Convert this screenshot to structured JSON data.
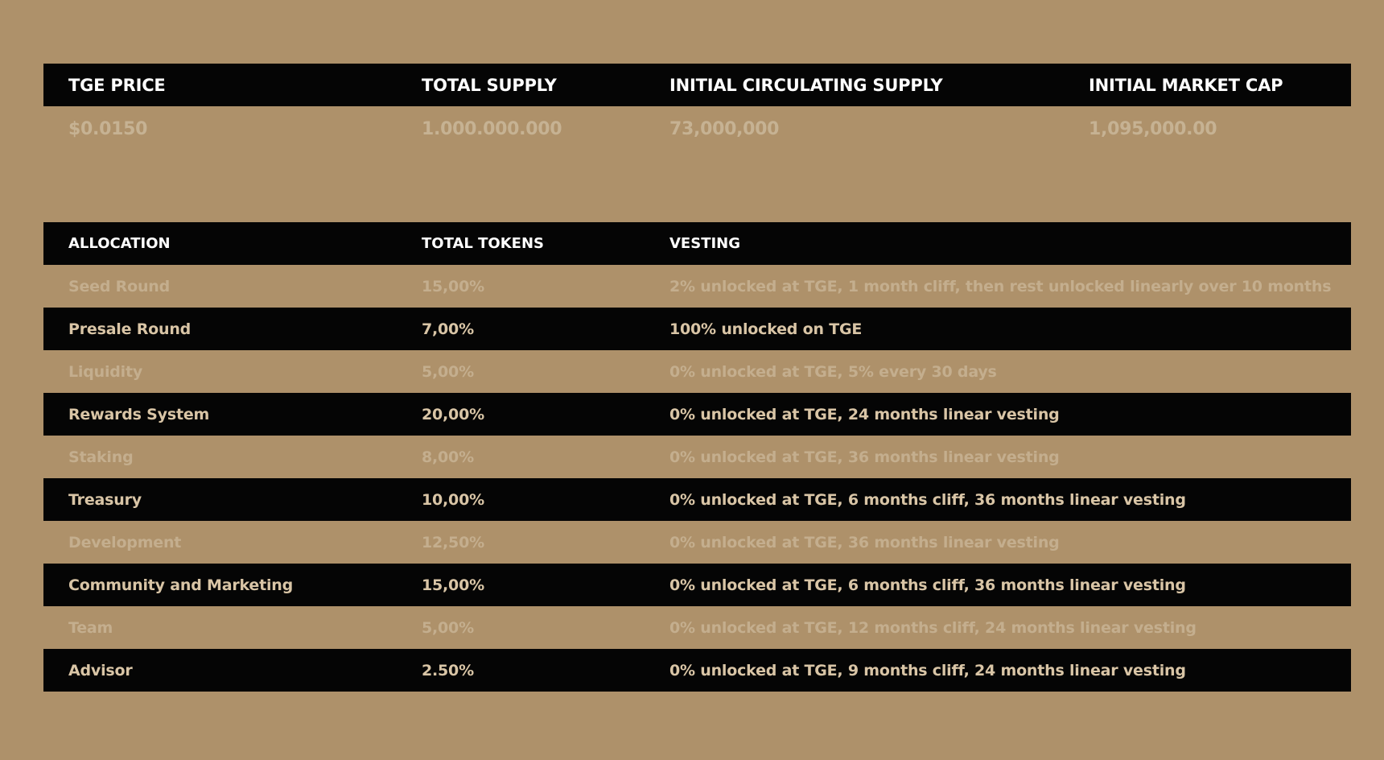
{
  "summary": {
    "headers": [
      "TGE PRICE",
      "TOTAL SUPPLY",
      "INITIAL CIRCULATING SUPPLY",
      "INITIAL MARKET CAP"
    ],
    "values": [
      "$0.0150",
      "1.000.000.000",
      "73,000,000",
      "1,095,000.00"
    ]
  },
  "allocation": {
    "headers": [
      "ALLOCATION",
      "TOTAL TOKENS",
      "VESTING"
    ],
    "rows": [
      {
        "name": "Seed Round",
        "tokens": "15,00%",
        "vesting": "2% unlocked at TGE,  1 month cliff, then rest unlocked linearly over 10 months"
      },
      {
        "name": "Presale Round",
        "tokens": "7,00%",
        "vesting": "100% unlocked on TGE"
      },
      {
        "name": "Liquidity",
        "tokens": "5,00%",
        "vesting": "0% unlocked at TGE,  5% every 30 days"
      },
      {
        "name": "Rewards System",
        "tokens": "20,00%",
        "vesting": "0% unlocked at TGE,  24 months linear vesting"
      },
      {
        "name": "Staking",
        "tokens": "8,00%",
        "vesting": "0% unlocked at TGE,  36 months linear vesting"
      },
      {
        "name": "Treasury",
        "tokens": "10,00%",
        "vesting": "0% unlocked at TGE,  6 months cliff,  36 months linear vesting"
      },
      {
        "name": "Development",
        "tokens": "12,50%",
        "vesting": "0% unlocked at TGE,  36 months linear vesting"
      },
      {
        "name": "Community and Marketing",
        "tokens": "15,00%",
        "vesting": "0% unlocked at TGE,  6 months cliff,  36 months linear vesting"
      },
      {
        "name": "Team",
        "tokens": "5,00%",
        "vesting": "0% unlocked at TGE,  12 months cliff,  24 months linear vesting"
      },
      {
        "name": "Advisor",
        "tokens": "2.50%",
        "vesting": "0% unlocked at TGE,  9 months cliff,  24 months linear vesting"
      }
    ]
  },
  "colors": {
    "background": "#AE916A",
    "bar": "#050505",
    "header_text": "#FFFFFF",
    "dark_row_text": "#D9C5A6",
    "light_row_text": "#C4AE8E"
  }
}
